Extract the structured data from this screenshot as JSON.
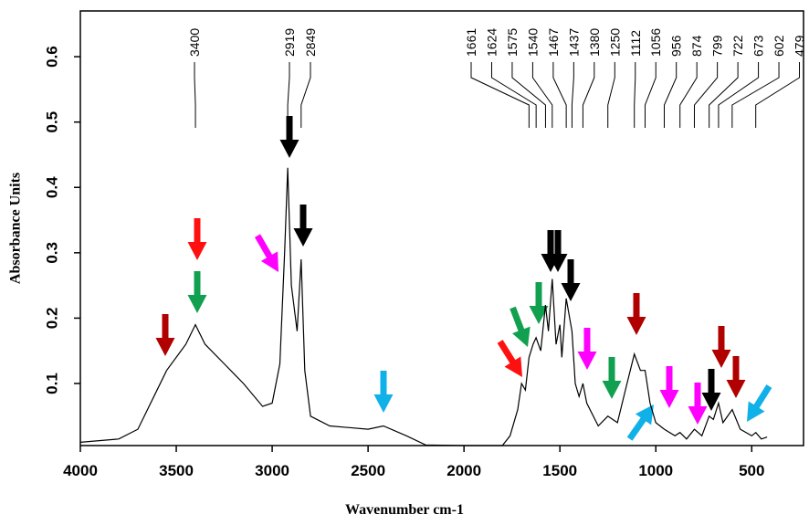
{
  "chart_data": {
    "type": "line",
    "xlabel": "Wavenumber cm-1",
    "ylabel": "Absorbance Units",
    "x": [
      4000,
      3800,
      3700,
      3600,
      3550,
      3450,
      3400,
      3350,
      3250,
      3150,
      3050,
      3000,
      2960,
      2935,
      2919,
      2900,
      2870,
      2849,
      2830,
      2800,
      2700,
      2500,
      2420,
      2300,
      2200,
      2000,
      1800,
      1760,
      1720,
      1700,
      1680,
      1661,
      1640,
      1624,
      1600,
      1575,
      1560,
      1540,
      1520,
      1500,
      1490,
      1467,
      1437,
      1420,
      1400,
      1380,
      1360,
      1300,
      1250,
      1200,
      1150,
      1112,
      1080,
      1056,
      1030,
      1000,
      956,
      900,
      874,
      840,
      799,
      760,
      722,
      700,
      673,
      650,
      602,
      560,
      500,
      479,
      450,
      420
    ],
    "values": [
      0.01,
      0.015,
      0.03,
      0.09,
      0.12,
      0.16,
      0.19,
      0.16,
      0.13,
      0.1,
      0.065,
      0.07,
      0.13,
      0.3,
      0.43,
      0.25,
      0.18,
      0.29,
      0.12,
      0.05,
      0.035,
      0.03,
      0.035,
      0.02,
      0.006,
      0.005,
      0.005,
      0.02,
      0.06,
      0.1,
      0.09,
      0.14,
      0.16,
      0.17,
      0.15,
      0.22,
      0.18,
      0.26,
      0.16,
      0.19,
      0.14,
      0.23,
      0.18,
      0.1,
      0.08,
      0.1,
      0.07,
      0.035,
      0.05,
      0.04,
      0.1,
      0.145,
      0.12,
      0.12,
      0.07,
      0.04,
      0.03,
      0.02,
      0.025,
      0.015,
      0.03,
      0.02,
      0.05,
      0.045,
      0.07,
      0.04,
      0.06,
      0.03,
      0.02,
      0.025,
      0.015,
      0.018
    ],
    "color": "#000000",
    "xlim": [
      4000,
      230
    ],
    "ylim": [
      0.005,
      0.67
    ],
    "xticks": [
      4000,
      3500,
      3000,
      2500,
      2000,
      1500,
      1000,
      500
    ],
    "yticks": [
      0.1,
      0.2,
      0.3,
      0.4,
      0.5,
      0.6
    ],
    "annotations": [
      3400,
      2919,
      2849,
      1661,
      1624,
      1575,
      1540,
      1467,
      1437,
      1380,
      1250,
      1112,
      1056,
      956,
      874,
      799,
      722,
      673,
      602,
      479
    ]
  }
}
